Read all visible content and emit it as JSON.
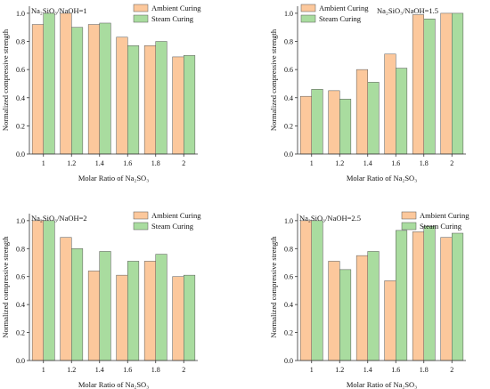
{
  "chart_data": [
    {
      "type": "bar",
      "annotation": "Na₂SiO₃/NaOH=1",
      "categories": [
        "1",
        "1.2",
        "1.4",
        "1.6",
        "1.8",
        "2"
      ],
      "series": [
        {
          "name": "Ambient Curing",
          "color": "#fcc89c",
          "values": [
            0.92,
            1.0,
            0.92,
            0.83,
            0.77,
            0.69
          ]
        },
        {
          "name": "Steam Curing",
          "color": "#a9dc9f",
          "values": [
            1.0,
            0.9,
            0.93,
            0.77,
            0.8,
            0.7
          ]
        }
      ],
      "xlabel": "Molar Ratio of Na₂SO₃",
      "ylabel": "Normalized compressive strength",
      "ylim": [
        0,
        1.05
      ],
      "yticks": [
        "0.0",
        "0.2",
        "0.4",
        "0.6",
        "0.8",
        "1.0"
      ],
      "legend": "top-right"
    },
    {
      "type": "bar",
      "annotation": "Na₂SiO₃/NaOH=1.5",
      "categories": [
        "1",
        "1.2",
        "1.4",
        "1.6",
        "1.8",
        "2"
      ],
      "series": [
        {
          "name": "Ambient Curing",
          "color": "#fcc89c",
          "values": [
            0.41,
            0.45,
            0.6,
            0.71,
            0.99,
            1.0
          ]
        },
        {
          "name": "Steam Curing",
          "color": "#a9dc9f",
          "values": [
            0.46,
            0.39,
            0.51,
            0.61,
            0.96,
            1.0
          ]
        }
      ],
      "xlabel": "Molar Ratio of Na₂SO₃",
      "ylabel": "Normalized compressive strength",
      "ylim": [
        0,
        1.05
      ],
      "yticks": [
        "0.0",
        "0.2",
        "0.4",
        "0.6",
        "0.8",
        "1.0"
      ],
      "legend": "top-left"
    },
    {
      "type": "bar",
      "annotation": "Na₂SiO₃/NaOH=2",
      "categories": [
        "1",
        "1.2",
        "1.4",
        "1.6",
        "1.8",
        "2"
      ],
      "series": [
        {
          "name": "Ambient Curing",
          "color": "#fcc89c",
          "values": [
            1.0,
            0.88,
            0.64,
            0.61,
            0.71,
            0.6
          ]
        },
        {
          "name": "Steam Curing",
          "color": "#a9dc9f",
          "values": [
            1.0,
            0.8,
            0.78,
            0.71,
            0.76,
            0.61
          ]
        }
      ],
      "xlabel": "Molar Ratio of Na₂SO₃",
      "ylabel": "Normalized compressive strength",
      "ylim": [
        0,
        1.05
      ],
      "yticks": [
        "0.0",
        "0.2",
        "0.4",
        "0.6",
        "0.8",
        "1.0"
      ],
      "legend": "top-right"
    },
    {
      "type": "bar",
      "annotation": "Na₂SiO₃/NaOH=2.5",
      "categories": [
        "1",
        "1.2",
        "1.4",
        "1.6",
        "1.8",
        "2"
      ],
      "series": [
        {
          "name": "Ambient Curing",
          "color": "#fcc89c",
          "values": [
            1.0,
            0.71,
            0.75,
            0.57,
            0.92,
            0.88
          ]
        },
        {
          "name": "Steam Curing",
          "color": "#a9dc9f",
          "values": [
            1.0,
            0.65,
            0.78,
            0.93,
            0.96,
            0.91
          ]
        }
      ],
      "xlabel": "Molar Ratio of Na₂SO₃",
      "ylabel": "Normalized compressive strength",
      "ylim": [
        0,
        1.05
      ],
      "yticks": [
        "0.0",
        "0.2",
        "0.4",
        "0.6",
        "0.8",
        "1.0"
      ],
      "legend": "top-right"
    }
  ]
}
